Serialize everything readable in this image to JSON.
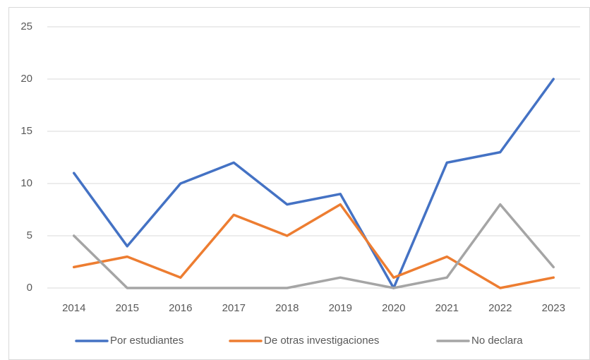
{
  "chart_data": {
    "type": "line",
    "categories": [
      "2014",
      "2015",
      "2016",
      "2017",
      "2018",
      "2019",
      "2020",
      "2021",
      "2022",
      "2023"
    ],
    "series": [
      {
        "name": "Por estudiantes",
        "color": "#4472c4",
        "values": [
          11,
          4,
          10,
          12,
          8,
          9,
          0,
          12,
          13,
          20
        ]
      },
      {
        "name": "De otras investigaciones",
        "color": "#ed7d31",
        "values": [
          2,
          3,
          1,
          7,
          5,
          8,
          1,
          3,
          0,
          1
        ]
      },
      {
        "name": "No declara",
        "color": "#a5a5a5",
        "values": [
          5,
          0,
          0,
          0,
          0,
          1,
          0,
          1,
          8,
          2
        ]
      }
    ],
    "ylim": [
      0,
      25
    ],
    "yticks": [
      0,
      5,
      10,
      15,
      20,
      25
    ],
    "grid": true,
    "legend": "bottom"
  }
}
